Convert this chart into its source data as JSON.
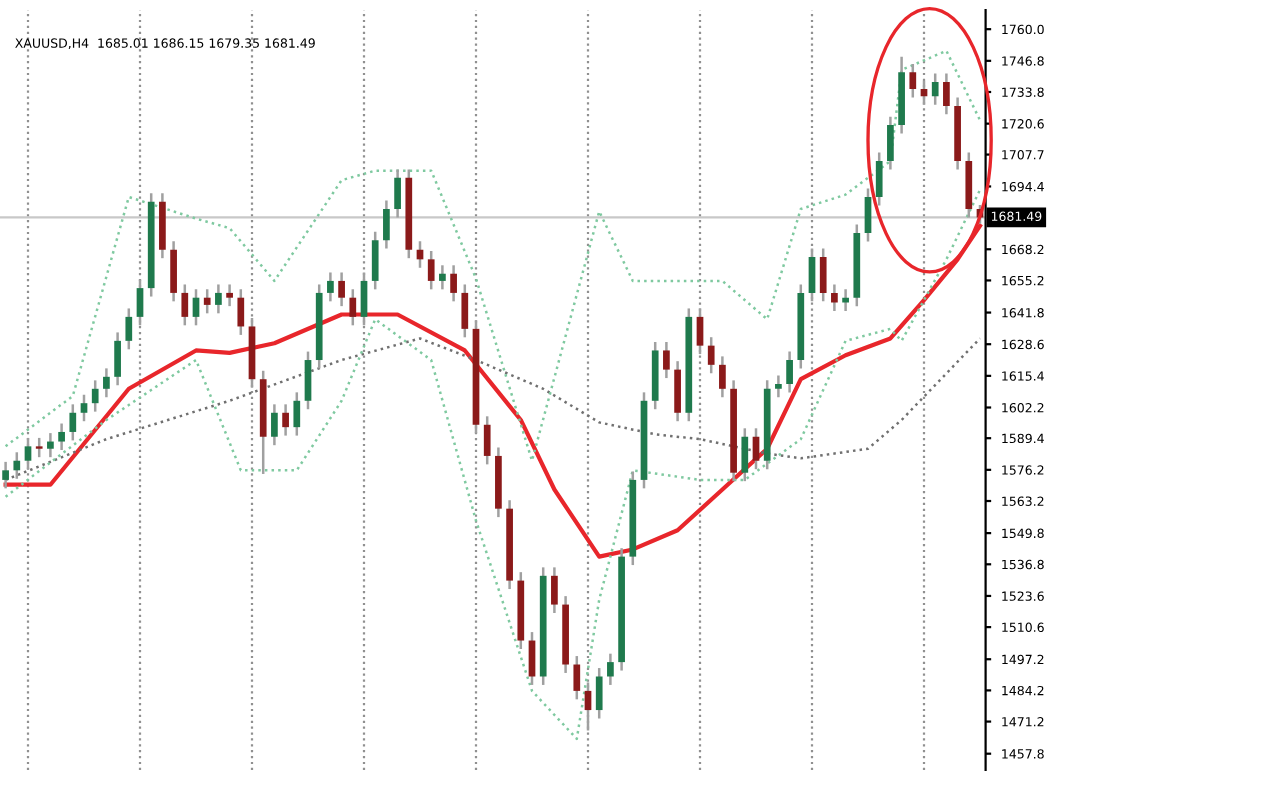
{
  "chart_data": {
    "type": "candlestick",
    "title": "XAUUSD,H4  1685.01 1686.15 1679.35 1681.49",
    "categories": [
      null,
      null,
      null,
      null,
      null,
      null,
      null,
      null,
      null,
      null,
      null,
      null,
      null,
      null,
      null,
      null,
      null,
      null,
      null,
      null,
      null,
      null,
      null,
      null,
      null,
      null,
      null,
      null,
      null,
      null,
      null,
      null,
      null,
      null,
      null,
      null,
      null,
      null,
      null,
      null,
      null,
      null,
      null,
      null,
      null,
      null,
      null,
      null,
      null,
      null,
      null,
      null,
      null,
      null,
      null,
      null,
      null,
      null,
      null,
      null,
      null,
      null,
      null,
      null,
      null,
      null,
      null,
      null,
      null,
      null,
      null,
      null,
      null,
      null,
      null,
      null,
      null,
      null,
      null,
      null,
      null,
      null,
      null,
      null,
      null,
      null,
      null,
      null
    ],
    "colors": [
      "#1f7a4d",
      "#1f7a4d",
      "#1f7a4d",
      "#8b1a1a",
      "#1f7a4d",
      "#1f7a4d",
      "#1f7a4d",
      "#1f7a4d",
      "#1f7a4d",
      "#1f7a4d",
      "#1f7a4d",
      "#1f7a4d",
      "#1f7a4d",
      "#1f7a4d",
      "#8b1a1a",
      "#8b1a1a",
      "#8b1a1a",
      "#1f7a4d",
      "#8b1a1a",
      "#1f7a4d",
      "#8b1a1a",
      "#8b1a1a",
      "#8b1a1a",
      "#8b1a1a",
      "#1f7a4d",
      "#8b1a1a",
      "#1f7a4d",
      "#1f7a4d",
      "#1f7a4d",
      "#1f7a4d",
      "#8b1a1a",
      "#8b1a1a",
      "#1f7a4d",
      "#1f7a4d",
      "#1f7a4d",
      "#1f7a4d",
      "#8b1a1a",
      "#8b1a1a",
      "#8b1a1a",
      "#1f7a4d",
      "#8b1a1a",
      "#8b1a1a",
      "#8b1a1a",
      "#8b1a1a",
      "#8b1a1a",
      "#8b1a1a",
      "#8b1a1a",
      "#8b1a1a",
      "#1f7a4d",
      "#8b1a1a",
      "#8b1a1a",
      "#8b1a1a",
      "#8b1a1a",
      "#1f7a4d",
      "#1f7a4d",
      "#1f7a4d",
      "#1f7a4d",
      "#1f7a4d",
      "#1f7a4d",
      "#8b1a1a",
      "#8b1a1a",
      "#1f7a4d",
      "#8b1a1a",
      "#8b1a1a",
      "#8b1a1a",
      "#8b1a1a",
      "#1f7a4d",
      "#8b1a1a",
      "#1f7a4d",
      "#1f7a4d",
      "#1f7a4d",
      "#1f7a4d",
      "#1f7a4d",
      "#8b1a1a",
      "#8b1a1a",
      "#1f7a4d",
      "#1f7a4d",
      "#1f7a4d",
      "#1f7a4d",
      "#1f7a4d",
      "#1f7a4d",
      "#8b1a1a",
      "#8b1a1a",
      "#1f7a4d",
      "#8b1a1a",
      "#8b1a1a",
      "#8b1a1a",
      "#8b1a1a"
    ],
    "ohlc": [
      [
        1572,
        1579,
        1569,
        1576
      ],
      [
        1576,
        1583,
        1573,
        1580
      ],
      [
        1580,
        1589,
        1577,
        1586
      ],
      [
        1586,
        1589,
        1582,
        1585
      ],
      [
        1585,
        1591,
        1582,
        1588
      ],
      [
        1588,
        1595,
        1585,
        1592
      ],
      [
        1592,
        1603,
        1589,
        1600
      ],
      [
        1600,
        1607,
        1597,
        1604
      ],
      [
        1604,
        1613,
        1601,
        1610
      ],
      [
        1610,
        1618,
        1607,
        1615
      ],
      [
        1615,
        1633,
        1612,
        1630
      ],
      [
        1630,
        1643,
        1627,
        1640
      ],
      [
        1640,
        1655,
        1637,
        1652
      ],
      [
        1652,
        1691,
        1649,
        1688
      ],
      [
        1688,
        1691,
        1665,
        1668
      ],
      [
        1668,
        1671,
        1647,
        1650
      ],
      [
        1650,
        1653,
        1637,
        1640
      ],
      [
        1640,
        1651,
        1637,
        1648
      ],
      [
        1648,
        1651,
        1642,
        1645
      ],
      [
        1645,
        1653,
        1642,
        1650
      ],
      [
        1650,
        1653,
        1645,
        1648
      ],
      [
        1648,
        1651,
        1633,
        1636
      ],
      [
        1636,
        1639,
        1611,
        1614
      ],
      [
        1614,
        1617,
        1575,
        1590
      ],
      [
        1590,
        1603,
        1587,
        1600
      ],
      [
        1600,
        1603,
        1591,
        1594
      ],
      [
        1594,
        1608,
        1591,
        1605
      ],
      [
        1605,
        1625,
        1602,
        1622
      ],
      [
        1622,
        1653,
        1619,
        1650
      ],
      [
        1650,
        1658,
        1647,
        1655
      ],
      [
        1655,
        1658,
        1645,
        1648
      ],
      [
        1648,
        1651,
        1637,
        1640
      ],
      [
        1640,
        1658,
        1637,
        1655
      ],
      [
        1655,
        1675,
        1652,
        1672
      ],
      [
        1672,
        1688,
        1669,
        1685
      ],
      [
        1685,
        1701,
        1682,
        1698
      ],
      [
        1698,
        1701,
        1665,
        1668
      ],
      [
        1668,
        1671,
        1661,
        1664
      ],
      [
        1664,
        1667,
        1652,
        1655
      ],
      [
        1655,
        1661,
        1652,
        1658
      ],
      [
        1658,
        1661,
        1647,
        1650
      ],
      [
        1650,
        1653,
        1632,
        1635
      ],
      [
        1635,
        1638,
        1592,
        1595
      ],
      [
        1595,
        1598,
        1579,
        1582
      ],
      [
        1582,
        1585,
        1557,
        1560
      ],
      [
        1560,
        1563,
        1527,
        1530
      ],
      [
        1530,
        1533,
        1502,
        1505
      ],
      [
        1505,
        1508,
        1487,
        1490
      ],
      [
        1490,
        1535,
        1487,
        1532
      ],
      [
        1532,
        1535,
        1517,
        1520
      ],
      [
        1520,
        1523,
        1492,
        1495
      ],
      [
        1495,
        1498,
        1481,
        1484
      ],
      [
        1484,
        1487,
        1468,
        1476
      ],
      [
        1476,
        1493,
        1473,
        1490
      ],
      [
        1490,
        1499,
        1487,
        1496
      ],
      [
        1496,
        1543,
        1493,
        1540
      ],
      [
        1540,
        1575,
        1537,
        1572
      ],
      [
        1572,
        1608,
        1569,
        1605
      ],
      [
        1605,
        1629,
        1602,
        1626
      ],
      [
        1626,
        1629,
        1615,
        1618
      ],
      [
        1618,
        1621,
        1597,
        1600
      ],
      [
        1600,
        1643,
        1597,
        1640
      ],
      [
        1640,
        1643,
        1625,
        1628
      ],
      [
        1628,
        1631,
        1617,
        1620
      ],
      [
        1620,
        1623,
        1607,
        1610
      ],
      [
        1610,
        1613,
        1572,
        1575
      ],
      [
        1575,
        1593,
        1572,
        1590
      ],
      [
        1590,
        1593,
        1577,
        1580
      ],
      [
        1580,
        1613,
        1577,
        1610
      ],
      [
        1610,
        1615,
        1607,
        1612
      ],
      [
        1612,
        1625,
        1609,
        1622
      ],
      [
        1622,
        1653,
        1619,
        1650
      ],
      [
        1650,
        1668,
        1647,
        1665
      ],
      [
        1665,
        1668,
        1647,
        1650
      ],
      [
        1650,
        1653,
        1643,
        1646
      ],
      [
        1646,
        1651,
        1643,
        1648
      ],
      [
        1648,
        1678,
        1645,
        1675
      ],
      [
        1675,
        1693,
        1672,
        1690
      ],
      [
        1690,
        1708,
        1687,
        1705
      ],
      [
        1705,
        1723,
        1702,
        1720
      ],
      [
        1720,
        1748,
        1717,
        1742
      ],
      [
        1742,
        1745,
        1732,
        1735
      ],
      [
        1735,
        1738,
        1729,
        1732
      ],
      [
        1732,
        1741,
        1729,
        1738
      ],
      [
        1738,
        1741,
        1725,
        1728
      ],
      [
        1728,
        1731,
        1702,
        1705
      ],
      [
        1705,
        1708,
        1682,
        1685
      ],
      [
        1685.01,
        1686.15,
        1679.35,
        1681.49
      ]
    ],
    "series": [
      {
        "type": "line",
        "color": "#e8262b",
        "line_style": "solid",
        "values": [
          1570,
          null,
          null,
          null,
          1570,
          null,
          null,
          null,
          null,
          null,
          null,
          1610,
          null,
          null,
          null,
          null,
          null,
          1626,
          null,
          null,
          1625,
          null,
          null,
          null,
          1629,
          null,
          null,
          null,
          null,
          null,
          1641,
          null,
          null,
          null,
          null,
          1641,
          null,
          null,
          null,
          null,
          null,
          1626,
          null,
          null,
          null,
          null,
          1597,
          null,
          null,
          1568,
          null,
          null,
          null,
          1540,
          null,
          null,
          1543,
          null,
          null,
          null,
          1551,
          null,
          null,
          null,
          1568,
          null,
          null,
          null,
          1585,
          null,
          null,
          1614,
          null,
          null,
          null,
          1624,
          null,
          null,
          null,
          1631,
          null,
          null,
          1647,
          null,
          null,
          1664,
          null,
          1678
        ]
      },
      {
        "type": "line",
        "color": "#707070",
        "line_style": "dotted",
        "values": [
          1572,
          null,
          null,
          null,
          null,
          null,
          null,
          null,
          null,
          1589,
          null,
          null,
          null,
          null,
          null,
          null,
          null,
          null,
          null,
          null,
          1605,
          null,
          null,
          null,
          null,
          null,
          null,
          null,
          null,
          null,
          1622,
          null,
          null,
          null,
          null,
          null,
          null,
          1631,
          null,
          null,
          null,
          null,
          1622,
          null,
          null,
          null,
          null,
          null,
          1610,
          null,
          null,
          null,
          null,
          1596,
          null,
          null,
          null,
          null,
          1591,
          null,
          null,
          null,
          1589,
          null,
          null,
          null,
          null,
          null,
          1583,
          null,
          null,
          1581,
          null,
          null,
          null,
          null,
          null,
          1585,
          null,
          null,
          1597,
          null,
          null,
          null,
          null,
          null,
          null,
          1631
        ]
      },
      {
        "type": "line",
        "color": "#7fc9a0",
        "line_style": "dotted",
        "values": [
          1586,
          null,
          null,
          null,
          null,
          null,
          1607,
          null,
          null,
          null,
          null,
          1690,
          null,
          null,
          null,
          null,
          null,
          1681,
          null,
          null,
          1677,
          null,
          null,
          null,
          1655,
          null,
          null,
          null,
          null,
          null,
          1697,
          null,
          null,
          1701,
          null,
          null,
          null,
          null,
          1701,
          null,
          null,
          null,
          1656,
          null,
          null,
          null,
          null,
          1580,
          null,
          null,
          null,
          null,
          null,
          1684,
          null,
          null,
          1655,
          null,
          null,
          null,
          1655,
          null,
          null,
          null,
          1655,
          null,
          null,
          null,
          1639,
          null,
          null,
          1685,
          null,
          null,
          null,
          1691,
          null,
          null,
          null,
          1705,
          1743,
          null,
          null,
          null,
          1751,
          null,
          null,
          1722
        ]
      },
      {
        "type": "line",
        "color": "#7fc9a0",
        "line_style": "dotted",
        "values": [
          1565,
          null,
          null,
          null,
          null,
          null,
          null,
          null,
          null,
          1597,
          null,
          null,
          null,
          null,
          null,
          null,
          null,
          1622,
          null,
          null,
          null,
          1576,
          null,
          null,
          null,
          null,
          1576,
          null,
          null,
          null,
          1605,
          null,
          null,
          1639,
          null,
          null,
          null,
          null,
          1622,
          null,
          null,
          null,
          1555,
          null,
          null,
          null,
          null,
          1484,
          null,
          null,
          null,
          1464,
          null,
          1522,
          null,
          null,
          1576,
          null,
          null,
          null,
          null,
          null,
          1572,
          null,
          null,
          null,
          1572,
          null,
          null,
          null,
          null,
          1589,
          null,
          null,
          null,
          1630,
          null,
          null,
          null,
          1635,
          1630,
          null,
          null,
          null,
          1664,
          null,
          null,
          1693
        ]
      }
    ],
    "ylim": [
      1451,
      1768
    ],
    "yticks": [
      {
        "value": 1760,
        "label": "1760.0"
      },
      1746.8,
      1733.8,
      1720.6,
      1707.7,
      1694.4,
      1668.2,
      1655.2,
      1641.8,
      1628.6,
      1615.4,
      1602.2,
      1589.4,
      1576.2,
      1563.2,
      1549.8,
      1536.8,
      1523.6,
      1510.6,
      1497.2,
      1484.2,
      1471.2,
      1457.8
    ],
    "ref_lines": [
      {
        "axis": "y",
        "value": 1681.49,
        "label": "1681.49",
        "color": "#c8c8c8",
        "line_style": "solid"
      }
    ],
    "tick_labels": "y",
    "grid": "x",
    "legend": false
  }
}
